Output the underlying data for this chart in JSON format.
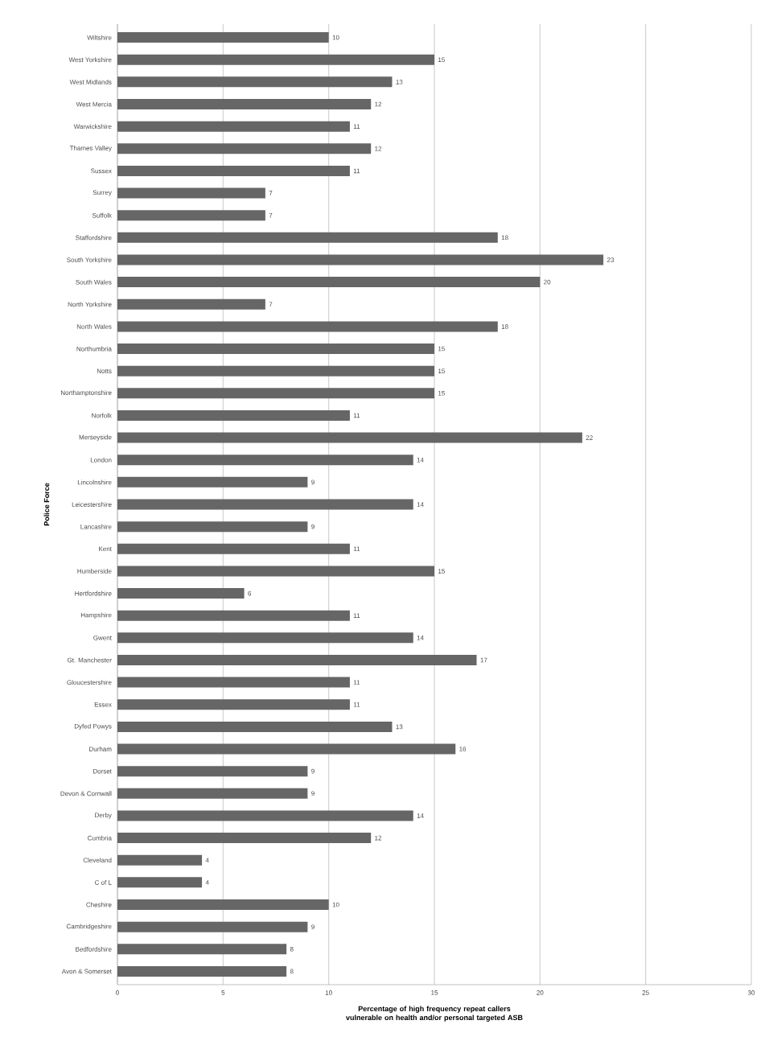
{
  "chart_data": {
    "type": "bar",
    "orientation": "horizontal",
    "ylabel": "Police Force",
    "xlabel": "Percentage of high frequency repeat callers vulnerable on health and/or personal targeted ASB",
    "categories": [
      "Wiltshire",
      "West Yorkshire",
      "West Midlands",
      "West Mercia",
      "Warwickshire",
      "Thames Valley",
      "Sussex",
      "Surrey",
      "Suffolk",
      "Staffordshire",
      "South Yorkshire",
      "South Wales",
      "North Yorkshire",
      "North Wales",
      "Northumbria",
      "Notts",
      "Northamptonshire",
      "Norfolk",
      "Merseyside",
      "London",
      "Lincolnshire",
      "Leicestershire",
      "Lancashire",
      "Kent",
      "Humberside",
      "Hertfordshire",
      "Hampshire",
      "Gwent",
      "Gt. Manchester",
      "Gloucestershire",
      "Essex",
      "Dyfed Powys",
      "Durham",
      "Dorset",
      "Devon & Cornwall",
      "Derby",
      "Cumbria",
      "Cleveland",
      "C of L",
      "Cheshire",
      "Cambridgeshire",
      "Bedfordshire",
      "Avon & Somerset"
    ],
    "values": [
      10,
      15,
      13,
      12,
      11,
      12,
      11,
      7,
      7,
      18,
      23,
      20,
      7,
      18,
      15,
      15,
      15,
      11,
      22,
      14,
      9,
      14,
      9,
      11,
      15,
      6,
      11,
      14,
      17,
      11,
      11,
      13,
      16,
      9,
      9,
      14,
      12,
      4,
      4,
      10,
      9,
      8,
      8
    ],
    "color": "#666666",
    "xlim": [
      0,
      30
    ],
    "xticks": [
      0,
      5,
      10,
      15,
      20,
      25,
      30
    ],
    "grid": "x",
    "data_labels": true
  }
}
